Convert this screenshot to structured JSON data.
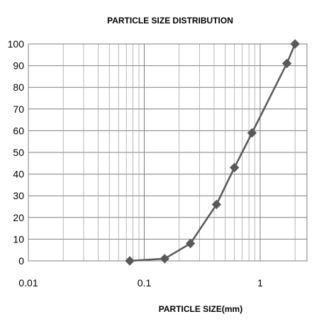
{
  "chart_data": {
    "type": "line",
    "title": "PARTICLE SIZE DISTRIBUTION",
    "xlabel": "PARTICLE SIZE(mm)",
    "ylabel": "",
    "x_scale": "log",
    "xlim": [
      0.01,
      3
    ],
    "ylim": [
      0,
      100
    ],
    "x_ticks": [
      0.01,
      0.1,
      1
    ],
    "x_tick_labels": [
      "0.01",
      "0.1",
      "1"
    ],
    "y_ticks": [
      0,
      10,
      20,
      30,
      40,
      50,
      60,
      70,
      80,
      90,
      100
    ],
    "y_tick_labels": [
      "0",
      "10",
      "20",
      "30",
      "40",
      "50",
      "60",
      "70",
      "80",
      "90",
      "100"
    ],
    "grid": true,
    "series": [
      {
        "color": "#595959",
        "marker": "diamond",
        "x": [
          0.075,
          0.15,
          0.25,
          0.42,
          0.6,
          0.85,
          1.7,
          2.0
        ],
        "y": [
          0,
          1,
          8,
          26,
          43,
          59,
          91,
          100
        ]
      }
    ]
  }
}
